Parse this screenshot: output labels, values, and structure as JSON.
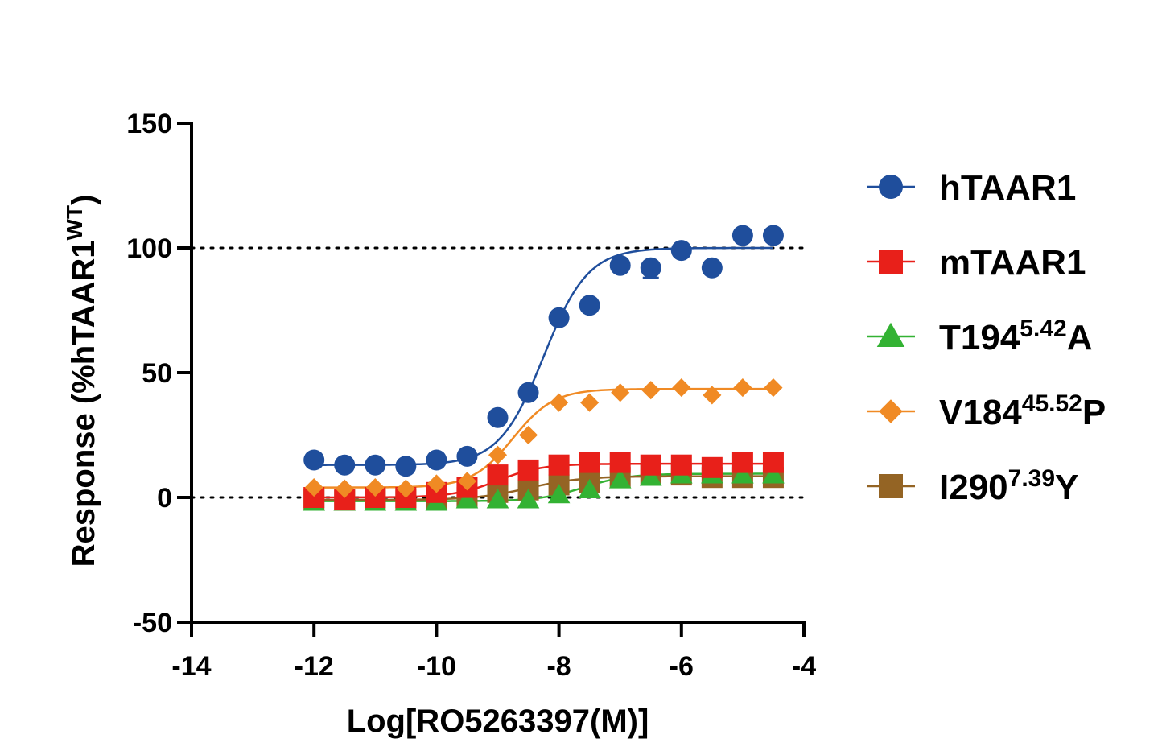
{
  "chart_data": {
    "type": "scatter",
    "xlabel": "Log[RO5263397(M)]",
    "ylabel": "Response (%hTAAR1",
    "ylabel_sup": "WT",
    "ylabel_close": ")",
    "xlim": [
      -14,
      -4
    ],
    "ylim": [
      -50,
      150
    ],
    "x_ticks": [
      "-14",
      "-12",
      "-10",
      "-8",
      "-6",
      "-4"
    ],
    "y_ticks": [
      "-50",
      "0",
      "50",
      "100",
      "150"
    ],
    "reference_lines": [
      0,
      100
    ],
    "legend_position": "right",
    "x": [
      -12,
      -11.5,
      -11,
      -10.5,
      -10,
      -9.5,
      -9,
      -8.5,
      -8,
      -7.5,
      -7,
      -6.5,
      -6,
      -5.5,
      -5,
      -4.5
    ],
    "series": [
      {
        "name": "hTAAR1",
        "name_sup": "",
        "name_suffix": "",
        "color": "#1f4e9c",
        "marker": "circle",
        "values": [
          15,
          13,
          13,
          12.5,
          15,
          16.5,
          32,
          42,
          72,
          77,
          93,
          92,
          99,
          92,
          105,
          105
        ],
        "fit": {
          "bottom": 13,
          "top": 100,
          "logec50": -8.25,
          "hill": 1.2
        }
      },
      {
        "name": "mTAAR1",
        "name_sup": "",
        "name_suffix": "",
        "color": "#e8201a",
        "marker": "square",
        "values": [
          0,
          -1,
          0,
          0,
          2,
          4,
          9,
          11,
          13,
          14,
          14,
          13,
          13,
          12,
          14,
          14
        ],
        "fit": {
          "bottom": 0,
          "top": 13.5,
          "logec50": -9.0,
          "hill": 1.2
        }
      },
      {
        "name": "T194",
        "name_sup": "5.42",
        "name_suffix": "A",
        "color": "#33b233",
        "marker": "triangle",
        "values": [
          -2,
          -2,
          -2,
          -2,
          -2,
          -1,
          -1,
          -1,
          1,
          3,
          7,
          8,
          9,
          9,
          9,
          9
        ],
        "fit": {
          "bottom": -1.5,
          "top": 9.5,
          "logec50": -7.6,
          "hill": 1.2
        }
      },
      {
        "name": "V184",
        "name_sup": "45.52",
        "name_suffix": "P",
        "color": "#f08a24",
        "marker": "diamond",
        "values": [
          4,
          3.5,
          4,
          3.5,
          5.5,
          6.5,
          17,
          25,
          38,
          38,
          42,
          43,
          44,
          41,
          44,
          44
        ],
        "fit": {
          "bottom": 4,
          "top": 43.5,
          "logec50": -8.75,
          "hill": 1.3
        }
      },
      {
        "name": "I290",
        "name_sup": "7.39",
        "name_suffix": "Y",
        "color": "#946424",
        "marker": "square",
        "values": [
          -1,
          -1,
          -1,
          -1,
          -1,
          0,
          2,
          3,
          5,
          6,
          8,
          9,
          9,
          8,
          8,
          8
        ],
        "fit": {
          "bottom": -1,
          "top": 8.5,
          "logec50": -8.5,
          "hill": 1.0
        }
      }
    ]
  }
}
